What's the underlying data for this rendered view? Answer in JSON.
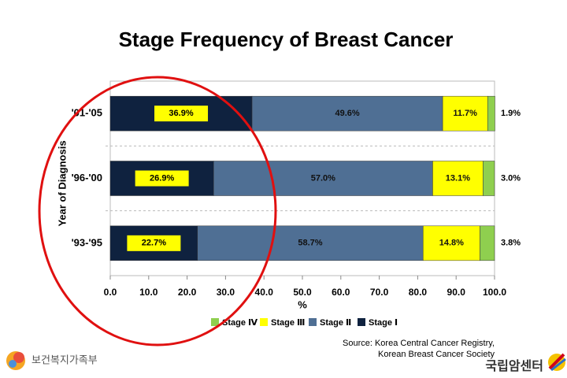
{
  "chart_data": {
    "type": "stacked_barh",
    "title": "Stage Frequency of Breast Cancer",
    "xlabel": "%",
    "ylabel": "Year of Diagnosis",
    "categories": [
      "'01-'05",
      "'96-'00",
      "'93-'95"
    ],
    "series": [
      {
        "name": "Stage Ⅰ",
        "color": "#0f223f",
        "values": [
          36.9,
          26.9,
          22.7
        ],
        "value_labels": [
          "36.9%",
          "26.9%",
          "22.7%"
        ]
      },
      {
        "name": "Stage Ⅱ",
        "color": "#4f6f94",
        "values": [
          49.6,
          57.0,
          58.7
        ],
        "value_labels": [
          "49.6%",
          "57.0%",
          "58.7%"
        ]
      },
      {
        "name": "Stage Ⅲ",
        "color": "#ffff00",
        "values": [
          11.7,
          13.1,
          14.8
        ],
        "value_labels": [
          "11.7%",
          "13.1%",
          "14.8%"
        ]
      },
      {
        "name": "Stage Ⅳ",
        "color": "#8fcf4f",
        "values": [
          1.9,
          3.0,
          3.8
        ],
        "value_labels": [
          "1.9%",
          "3.0%",
          "3.8%"
        ]
      }
    ],
    "legend_order": [
      3,
      2,
      1,
      0
    ],
    "xlim": [
      0,
      100
    ],
    "xticks": [
      {
        "value": 0,
        "label": "0.0"
      },
      {
        "value": 10,
        "label": "10.0"
      },
      {
        "value": 20,
        "label": "20.0"
      },
      {
        "value": 30,
        "label": "30.0"
      },
      {
        "value": 40,
        "label": "40.0"
      },
      {
        "value": 50,
        "label": "50.0"
      },
      {
        "value": 60,
        "label": "60.0"
      },
      {
        "value": 70,
        "label": "70.0"
      },
      {
        "value": 80,
        "label": "80.0"
      },
      {
        "value": 90,
        "label": "90.0"
      },
      {
        "value": 100,
        "label": "100.0"
      }
    ],
    "source": [
      "Source: Korea Central Cancer Registry,",
      "Korean Breast Cancer Society"
    ],
    "logos": [
      "보건복지가족부",
      "국립암센터"
    ]
  }
}
